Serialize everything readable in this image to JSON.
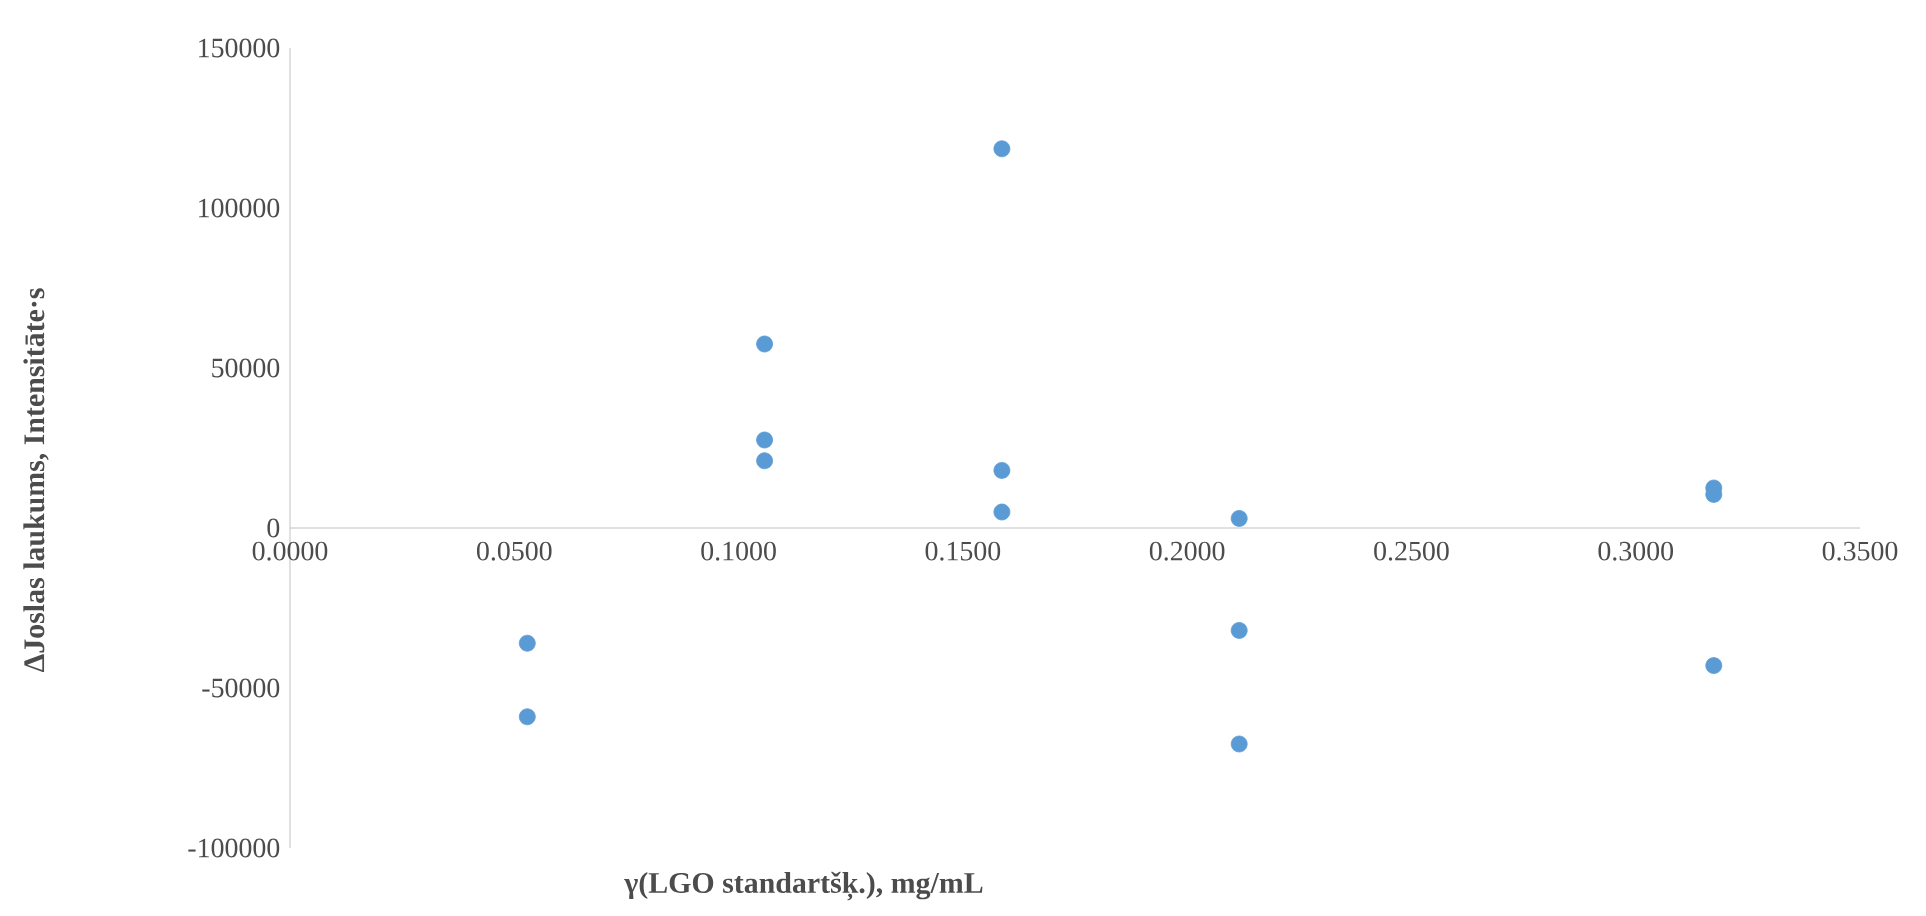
{
  "chart_data": {
    "type": "scatter",
    "xlabel": "γ(LGO standartšķ.), mg/mL",
    "ylabel": "ΔJoslas laukums, Intensitāte·s",
    "marker": "circle",
    "x": [
      0.0529,
      0.0529,
      0.1058,
      0.1058,
      0.1058,
      0.1587,
      0.1587,
      0.1587,
      0.2116,
      0.2116,
      0.2116,
      0.3174,
      0.3174,
      0.3174
    ],
    "series": [
      {
        "color": "#5b9bd5",
        "values": [
          -36000,
          -59000,
          57500,
          27500,
          21000,
          118500,
          18000,
          5000,
          3000,
          -32000,
          -67500,
          12500,
          10500,
          -43000
        ]
      }
    ],
    "xlim": [
      0,
      0.35
    ],
    "ylim": [
      -100000,
      150000
    ],
    "xticks": [
      {
        "value": 0,
        "label": "0.0000"
      },
      {
        "value": 0.05,
        "label": "0.0500"
      },
      {
        "value": 0.1,
        "label": "0.1000"
      },
      {
        "value": 0.15,
        "label": "0.1500"
      },
      {
        "value": 0.2,
        "label": "0.2000"
      },
      {
        "value": 0.25,
        "label": "0.2500"
      },
      {
        "value": 0.3,
        "label": "0.3000"
      },
      {
        "value": 0.35,
        "label": "0.3500"
      }
    ],
    "yticks": [
      -100000,
      -50000,
      0,
      50000,
      100000,
      150000
    ]
  }
}
